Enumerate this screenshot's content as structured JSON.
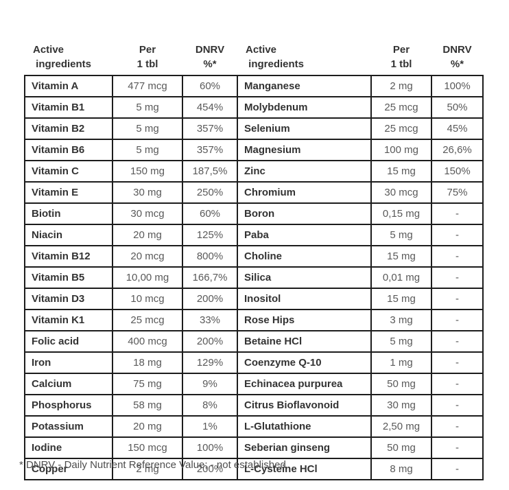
{
  "colors": {
    "background": "#ffffff",
    "border": "#1c1c1c",
    "ingredient_text": "#333333",
    "value_text": "#595959",
    "footnote_text": "#4d4d4d"
  },
  "table": {
    "columns": [
      {
        "label": "Active\n ingredients",
        "align": "left"
      },
      {
        "label": "Per\n1 tbl",
        "align": "center"
      },
      {
        "label": "DNRV\n%*",
        "align": "center"
      },
      {
        "label": "Active\n ingredients",
        "align": "left"
      },
      {
        "label": "Per\n1 tbl",
        "align": "center"
      },
      {
        "label": "DNRV\n%*",
        "align": "center"
      }
    ],
    "rows": [
      [
        "Vitamin A",
        "477 mcg",
        "60%",
        "Manganese",
        "2 mg",
        "100%"
      ],
      [
        "Vitamin B1",
        "5 mg",
        "454%",
        "Molybdenum",
        "25 mcg",
        "50%"
      ],
      [
        "Vitamin B2",
        "5 mg",
        "357%",
        "Selenium",
        "25 mcg",
        "45%"
      ],
      [
        "Vitamin B6",
        "5 mg",
        "357%",
        "Magnesium",
        "100 mg",
        "26,6%"
      ],
      [
        "Vitamin C",
        "150 mg",
        "187,5%",
        "Zinc",
        "15 mg",
        "150%"
      ],
      [
        "Vitamin E",
        "30 mg",
        "250%",
        "Chromium",
        "30 mcg",
        "75%"
      ],
      [
        "Biotin",
        "30 mcg",
        "60%",
        "Boron",
        "0,15 mg",
        "-"
      ],
      [
        "Niacin",
        "20 mg",
        "125%",
        "Paba",
        "5 mg",
        "-"
      ],
      [
        "Vitamin B12",
        "20 mcg",
        "800%",
        "Choline",
        "15 mg",
        "-"
      ],
      [
        "Vitamin B5",
        "10,00 mg",
        "166,7%",
        "Silica",
        "0,01 mg",
        "-"
      ],
      [
        "Vitamin D3",
        "10 mcg",
        "200%",
        "Inositol",
        "15 mg",
        "-"
      ],
      [
        "Vitamin K1",
        "25 mcg",
        "33%",
        "Rose Hips",
        "3 mg",
        "-"
      ],
      [
        "Folic acid",
        "400 mcg",
        "200%",
        "Betaine HCl",
        "5 mg",
        "-"
      ],
      [
        "Iron",
        "18 mg",
        "129%",
        "Coenzyme Q-10",
        "1 mg",
        "-"
      ],
      [
        "Calcium",
        "75 mg",
        "9%",
        "Echinacea purpurea",
        "50 mg",
        "-"
      ],
      [
        "Phosphorus",
        "58 mg",
        "8%",
        "Citrus Bioflavonoid",
        "30 mg",
        "-"
      ],
      [
        "Potassium",
        "20 mg",
        "1%",
        "L-Glutathione",
        "2,50 mg",
        "-"
      ],
      [
        "Iodine",
        "150 mcg",
        "100%",
        "Seberian ginseng",
        "50 mg",
        "-"
      ],
      [
        "Copper",
        "2 mg",
        "200%",
        "L-Cysteine HCl",
        "8 mg",
        "-"
      ]
    ]
  },
  "footnote": "* DNRV - Daily Nutrient Reference Value; - not established"
}
